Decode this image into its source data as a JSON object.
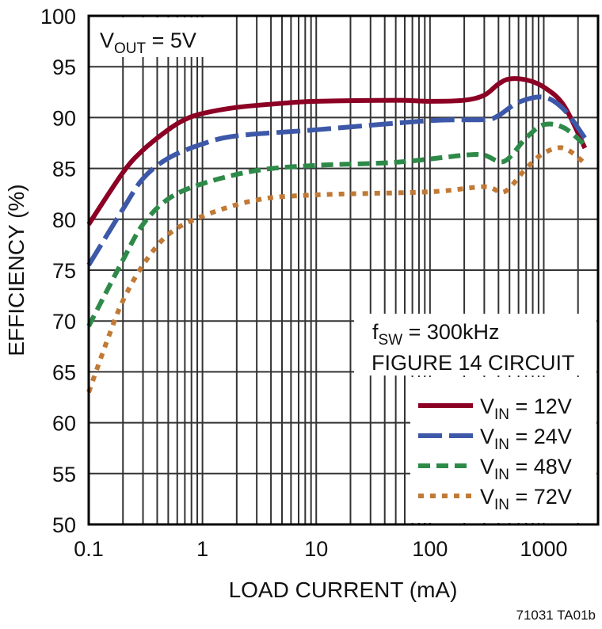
{
  "chart_data": {
    "type": "line",
    "xlabel": "LOAD CURRENT (mA)",
    "ylabel": "EFFICIENCY (%)",
    "xscale": "log",
    "xlim": [
      0.1,
      3000
    ],
    "ylim": [
      50,
      100
    ],
    "grid": true,
    "x_ticks": [
      "0.1",
      "1",
      "10",
      "100",
      "1000"
    ],
    "y_ticks": [
      "50",
      "55",
      "60",
      "65",
      "70",
      "75",
      "80",
      "85",
      "90",
      "95",
      "100"
    ],
    "annotation_vout": {
      "main": "V",
      "sub": "OUT",
      "rest": " = 5V"
    },
    "annotation_fsw": {
      "main": "f",
      "sub": "SW",
      "rest": " = 300kHz"
    },
    "annotation_circuit": "FIGURE 14 CIRCUIT",
    "legend_placement": "bottom-right",
    "series": [
      {
        "name": "VIN = 12V",
        "label_main": "V",
        "label_sub": "IN",
        "label_rest": " = 12V",
        "color": "#8b0024",
        "style": "solid",
        "x": [
          0.1,
          0.2,
          0.3,
          0.5,
          0.7,
          1,
          2,
          5,
          10,
          50,
          100,
          200,
          300,
          400,
          500,
          700,
          1000,
          1500,
          2300
        ],
        "y": [
          79.5,
          84.6,
          86.8,
          88.8,
          89.8,
          90.4,
          91.0,
          91.4,
          91.6,
          91.7,
          91.6,
          91.7,
          92.2,
          93.3,
          93.8,
          93.7,
          93.0,
          91.2,
          87.0
        ]
      },
      {
        "name": "VIN = 24V",
        "label_main": "V",
        "label_sub": "IN",
        "label_rest": " = 24V",
        "color": "#3d58a8",
        "style": "long-dash",
        "x": [
          0.1,
          0.2,
          0.3,
          0.5,
          1,
          2,
          10,
          100,
          300,
          400,
          600,
          1000,
          1500,
          2300
        ],
        "y": [
          75.5,
          81.0,
          84.0,
          86.0,
          87.4,
          88.2,
          88.8,
          89.7,
          89.8,
          90.2,
          91.5,
          92.0,
          90.8,
          88.0
        ]
      },
      {
        "name": "VIN = 48V",
        "label_main": "V",
        "label_sub": "IN",
        "label_rest": " = 48V",
        "color": "#2e8a48",
        "style": "dash",
        "x": [
          0.1,
          0.2,
          0.3,
          0.5,
          1,
          3,
          10,
          50,
          200,
          300,
          450,
          700,
          1000,
          1500,
          2300
        ],
        "y": [
          69.5,
          76.0,
          79.5,
          82.0,
          83.5,
          84.8,
          85.3,
          85.6,
          86.3,
          86.3,
          85.7,
          88.0,
          89.3,
          89.0,
          87.3
        ]
      },
      {
        "name": "VIN = 72V",
        "label_main": "V",
        "label_sub": "IN",
        "label_rest": " = 72V",
        "color": "#c17a36",
        "style": "dot",
        "x": [
          0.1,
          0.15,
          0.2,
          0.3,
          0.5,
          1,
          3,
          10,
          100,
          300,
          450,
          700,
          1000,
          1500,
          2300
        ],
        "y": [
          63.0,
          68.5,
          72.0,
          75.5,
          78.5,
          80.3,
          81.9,
          82.4,
          82.7,
          83.2,
          82.7,
          85.0,
          86.5,
          87.0,
          85.5
        ]
      }
    ]
  },
  "footer_code": "71031 TA01b"
}
